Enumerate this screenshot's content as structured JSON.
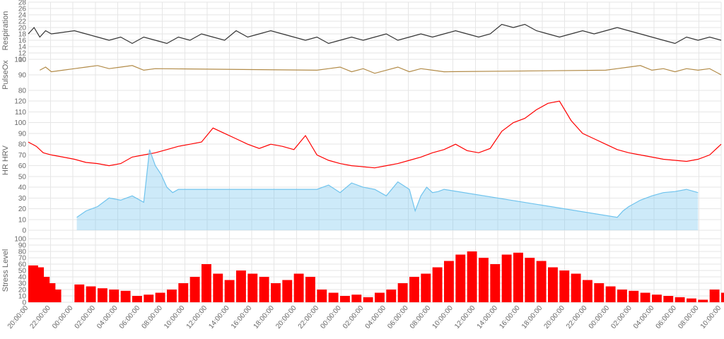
{
  "chart_data": {
    "type": "line",
    "x_unit": "hours",
    "x_range": [
      0,
      60
    ],
    "x_ticks": [
      "20:00:00",
      "22:00:00",
      "00:00:00",
      "02:00:00",
      "04:00:00",
      "06:00:00",
      "08:00:00",
      "10:00:00",
      "12:00:00",
      "14:00:00",
      "16:00:00",
      "18:00:00",
      "20:00:00",
      "22:00:00",
      "00:00:00",
      "02:00:00",
      "04:00:00",
      "06:00:00",
      "08:00:00",
      "10:00:00",
      "12:00:00",
      "14:00:00",
      "16:00:00",
      "18:00:00",
      "20:00:00",
      "22:00:00",
      "00:00:00",
      "02:00:00",
      "04:00:00",
      "06:00:00",
      "08:00:00",
      "10:00:00"
    ],
    "panels": [
      {
        "id": "respiration",
        "ylabel": "Respiration",
        "ylim": [
          10,
          28
        ],
        "yticks": [
          "10",
          "12",
          "14",
          "16",
          "18",
          "20",
          "22",
          "24",
          "26",
          "28"
        ],
        "series": [
          {
            "style": "line",
            "color": "#333333",
            "x": [
              0,
              0.5,
              1,
              1.5,
              2,
              4,
              5,
              6,
              7,
              8,
              9,
              10,
              11,
              12,
              13,
              14,
              15,
              16,
              17,
              18,
              19,
              20,
              21,
              22,
              23,
              24,
              25,
              26,
              27,
              28,
              29,
              30,
              31,
              32,
              33,
              34,
              35,
              36,
              37,
              38,
              39,
              40,
              41,
              42,
              43,
              44,
              45,
              46,
              47,
              48,
              49,
              50,
              51,
              52,
              53,
              54,
              55,
              56,
              57,
              58,
              59,
              60
            ],
            "y": [
              18,
              20,
              17,
              19,
              18,
              19,
              18,
              17,
              16,
              17,
              15,
              17,
              16,
              15,
              17,
              16,
              18,
              17,
              16,
              19,
              17,
              18,
              19,
              18,
              17,
              16,
              17,
              15,
              16,
              17,
              16,
              17,
              18,
              16,
              17,
              18,
              17,
              18,
              19,
              18,
              17,
              18,
              21,
              20,
              21,
              19,
              18,
              17,
              18,
              19,
              18,
              19,
              20,
              19,
              18,
              17,
              16,
              15,
              17,
              16,
              17,
              16
            ]
          }
        ]
      },
      {
        "id": "pulseox",
        "ylabel": "PulseOx",
        "ylim": [
          80,
          100
        ],
        "yticks": [
          "80",
          "90",
          "100"
        ],
        "series": [
          {
            "style": "line",
            "color": "#b28b48",
            "x": [
              1,
              1.5,
              2,
              3,
              4,
              5,
              6,
              7,
              8,
              9,
              10,
              11,
              25,
              26,
              27,
              28,
              29,
              30,
              31,
              32,
              33,
              34,
              35,
              36,
              50,
              51,
              52,
              53,
              54,
              55,
              56,
              57,
              58,
              59,
              60
            ],
            "y": [
              93,
              95,
              92,
              93,
              94,
              95,
              96,
              94,
              95,
              96,
              93,
              94,
              93,
              94,
              95,
              92,
              94,
              91,
              93,
              95,
              92,
              94,
              93,
              92,
              93,
              94,
              95,
              96,
              93,
              94,
              92,
              94,
              93,
              94,
              90
            ]
          }
        ]
      },
      {
        "id": "hr-hrv",
        "ylabel": "HR HRV",
        "ylim": [
          0,
          130
        ],
        "yticks": [
          "0",
          "10",
          "20",
          "30",
          "40",
          "50",
          "60",
          "70",
          "80",
          "90",
          "100",
          "110",
          "120"
        ],
        "series": [
          {
            "style": "line",
            "color": "#ff0000",
            "x": [
              0,
              0.7,
              1.3,
              2,
              3,
              4,
              5,
              6,
              7,
              8,
              9,
              10,
              11,
              12,
              13,
              14,
              15,
              16,
              17,
              18,
              19,
              20,
              21,
              22,
              23,
              24,
              25,
              26,
              27,
              28,
              29,
              30,
              31,
              32,
              33,
              34,
              35,
              36,
              37,
              38,
              39,
              40,
              41,
              42,
              43,
              44,
              45,
              46,
              47,
              48,
              49,
              50,
              51,
              52,
              53,
              54,
              55,
              56,
              57,
              58,
              59,
              60
            ],
            "y": [
              82,
              78,
              72,
              70,
              68,
              66,
              63,
              62,
              60,
              62,
              68,
              70,
              72,
              75,
              78,
              80,
              82,
              95,
              90,
              85,
              80,
              76,
              80,
              78,
              75,
              88,
              70,
              65,
              62,
              60,
              59,
              58,
              60,
              62,
              65,
              68,
              72,
              75,
              80,
              74,
              72,
              76,
              92,
              100,
              104,
              112,
              118,
              120,
              102,
              90,
              85,
              80,
              75,
              72,
              70,
              68,
              66,
              65,
              64,
              66,
              70,
              80
            ]
          },
          {
            "style": "area",
            "color": "#6fc3ed",
            "x": [
              4.2,
              5,
              6,
              7,
              8,
              9,
              10,
              10.5,
              11,
              11.5,
              12,
              12.5,
              13,
              25,
              26,
              27,
              28,
              29,
              30,
              31,
              32,
              33,
              33.5,
              34,
              34.5,
              35,
              35.5,
              36,
              51,
              51.5,
              52,
              53,
              54,
              55,
              56,
              57,
              58
            ],
            "y": [
              12,
              18,
              22,
              30,
              28,
              32,
              26,
              75,
              60,
              52,
              40,
              35,
              38,
              38,
              42,
              35,
              44,
              40,
              38,
              32,
              45,
              38,
              18,
              32,
              40,
              35,
              36,
              38,
              12,
              18,
              22,
              28,
              32,
              35,
              36,
              38,
              35
            ]
          }
        ]
      },
      {
        "id": "stress",
        "ylabel": "Stress Level",
        "ylim": [
          0,
          100
        ],
        "yticks": [
          "0",
          "10",
          "20",
          "30",
          "40",
          "50",
          "60",
          "70",
          "80",
          "90",
          "100"
        ],
        "series": [
          {
            "style": "bars",
            "color": "#ff0000",
            "x": [
              0,
              0.5,
              1,
              1.5,
              2,
              4,
              5,
              6,
              7,
              8,
              9,
              10,
              11,
              12,
              13,
              14,
              15,
              16,
              17,
              18,
              19,
              20,
              21,
              22,
              23,
              24,
              25,
              26,
              27,
              28,
              29,
              30,
              31,
              32,
              33,
              34,
              35,
              36,
              37,
              38,
              39,
              40,
              41,
              42,
              43,
              44,
              45,
              46,
              47,
              48,
              49,
              50,
              51,
              52,
              53,
              54,
              55,
              56,
              57,
              58,
              59,
              60
            ],
            "y": [
              58,
              55,
              40,
              30,
              20,
              28,
              25,
              22,
              20,
              18,
              10,
              12,
              15,
              20,
              30,
              40,
              60,
              45,
              35,
              50,
              45,
              40,
              30,
              35,
              45,
              40,
              20,
              15,
              10,
              12,
              8,
              15,
              20,
              30,
              40,
              45,
              55,
              65,
              75,
              80,
              70,
              60,
              75,
              78,
              70,
              65,
              55,
              50,
              45,
              35,
              30,
              25,
              20,
              18,
              15,
              12,
              10,
              8,
              6,
              4,
              20,
              15
            ]
          }
        ]
      }
    ]
  }
}
